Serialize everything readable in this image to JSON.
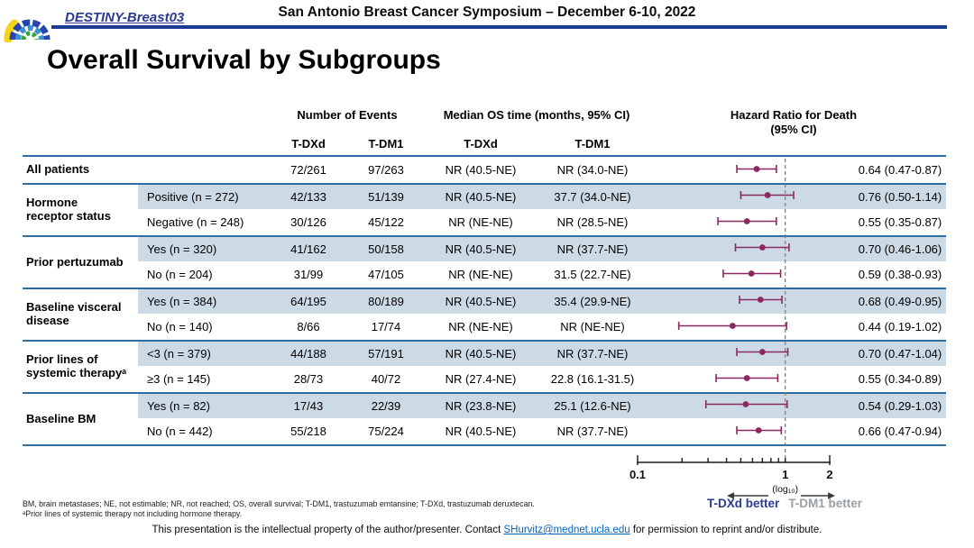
{
  "banner": {
    "study": "DESTINY-Breast03",
    "symposium": "San Antonio Breast Cancer Symposium – December 6-10, 2022"
  },
  "page": {
    "title": "Overall Survival by Subgroups"
  },
  "colors": {
    "navy": "#1c3c94",
    "destiny": "#2b3990",
    "stripe": "#ccdae6",
    "sep": "#2e6da4",
    "marker": "#8c2860",
    "graylabel": "#9aa0a6",
    "link": "#0563c1"
  },
  "table": {
    "col_headers": {
      "events": "Number of Events",
      "median": "Median OS time (months, 95% CI)",
      "hazard_line1": "Hazard Ratio for Death",
      "hazard_line2": "(95% CI)",
      "ev_tdxd": "T-DXd",
      "ev_tdm1": "T-DM1",
      "md_tdxd": "T-DXd",
      "md_tdm1": "T-DM1"
    },
    "groups": [
      {
        "label": "All patients"
      },
      {
        "label": "Hormone receptor status"
      },
      {
        "label": "Prior pertuzumab"
      },
      {
        "label": "Baseline visceral disease"
      },
      {
        "label": "Prior lines of systemic therapyᵃ"
      },
      {
        "label": "Baseline BM"
      }
    ],
    "rows": [
      {
        "sub": "",
        "ev_dxd": "72/261",
        "ev_dm1": "97/263",
        "med_dxd": "NR (40.5-NE)",
        "med_dm1": "NR (34.0-NE)",
        "hr_text": "0.64 (0.47-0.87)"
      },
      {
        "sub": "Positive (n = 272)",
        "ev_dxd": "42/133",
        "ev_dm1": "51/139",
        "med_dxd": "NR (40.5-NE)",
        "med_dm1": "37.7 (34.0-NE)",
        "hr_text": "0.76 (0.50-1.14)"
      },
      {
        "sub": "Negative (n = 248)",
        "ev_dxd": "30/126",
        "ev_dm1": "45/122",
        "med_dxd": "NR (NE-NE)",
        "med_dm1": "NR (28.5-NE)",
        "hr_text": "0.55 (0.35-0.87)"
      },
      {
        "sub": "Yes (n = 320)",
        "ev_dxd": "41/162",
        "ev_dm1": "50/158",
        "med_dxd": "NR (40.5-NE)",
        "med_dm1": "NR (37.7-NE)",
        "hr_text": "0.70 (0.46-1.06)"
      },
      {
        "sub": "No (n = 204)",
        "ev_dxd": "31/99",
        "ev_dm1": "47/105",
        "med_dxd": "NR (NE-NE)",
        "med_dm1": "31.5 (22.7-NE)",
        "hr_text": "0.59 (0.38-0.93)"
      },
      {
        "sub": "Yes (n = 384)",
        "ev_dxd": "64/195",
        "ev_dm1": "80/189",
        "med_dxd": "NR (40.5-NE)",
        "med_dm1": "35.4 (29.9-NE)",
        "hr_text": "0.68 (0.49-0.95)"
      },
      {
        "sub": "No (n = 140)",
        "ev_dxd": "8/66",
        "ev_dm1": "17/74",
        "med_dxd": "NR (NE-NE)",
        "med_dm1": "NR (NE-NE)",
        "hr_text": "0.44 (0.19-1.02)"
      },
      {
        "sub": "<3 (n = 379)",
        "ev_dxd": "44/188",
        "ev_dm1": "57/191",
        "med_dxd": "NR (40.5-NE)",
        "med_dm1": "NR (37.7-NE)",
        "hr_text": "0.70 (0.47-1.04)"
      },
      {
        "sub": "≥3 (n = 145)",
        "ev_dxd": "28/73",
        "ev_dm1": "40/72",
        "med_dxd": "NR (27.4-NE)",
        "med_dm1": "22.8 (16.1-31.5)",
        "hr_text": "0.55 (0.34-0.89)"
      },
      {
        "sub": "Yes (n = 82)",
        "ev_dxd": "17/43",
        "ev_dm1": "22/39",
        "med_dxd": "NR (23.8-NE)",
        "med_dm1": "25.1 (12.6-NE)",
        "hr_text": "0.54 (0.29-1.03)"
      },
      {
        "sub": "No (n = 442)",
        "ev_dxd": "55/218",
        "ev_dm1": "75/224",
        "med_dxd": "NR (40.5-NE)",
        "med_dm1": "NR (37.7-NE)",
        "hr_text": "0.66 (0.47-0.94)"
      }
    ]
  },
  "chart_data": {
    "type": "scatter",
    "title": "Hazard Ratio for Death (95% CI)",
    "x_scale": "log10",
    "x_range": [
      0.1,
      2
    ],
    "reference_line": 1,
    "ticks": [
      0.1,
      0.2,
      0.3,
      0.4,
      0.5,
      0.6,
      0.7,
      0.8,
      0.9,
      1,
      2
    ],
    "tick_labels": [
      {
        "value": 0.1,
        "label": "0.1"
      },
      {
        "value": 1,
        "label": "1"
      },
      {
        "value": 2,
        "label": "2"
      }
    ],
    "scale_note": "(log₁₀)",
    "better_left": "T-DXd better",
    "better_right": "T-DM1 better",
    "points": [
      {
        "subgroup": "All patients",
        "hr": 0.64,
        "lo": 0.47,
        "hi": 0.87
      },
      {
        "subgroup": "Hormone receptor status — Positive (n = 272)",
        "hr": 0.76,
        "lo": 0.5,
        "hi": 1.14
      },
      {
        "subgroup": "Hormone receptor status — Negative (n = 248)",
        "hr": 0.55,
        "lo": 0.35,
        "hi": 0.87
      },
      {
        "subgroup": "Prior pertuzumab — Yes (n = 320)",
        "hr": 0.7,
        "lo": 0.46,
        "hi": 1.06
      },
      {
        "subgroup": "Prior pertuzumab — No (n = 204)",
        "hr": 0.59,
        "lo": 0.38,
        "hi": 0.93
      },
      {
        "subgroup": "Baseline visceral disease — Yes (n = 384)",
        "hr": 0.68,
        "lo": 0.49,
        "hi": 0.95
      },
      {
        "subgroup": "Baseline visceral disease — No (n = 140)",
        "hr": 0.44,
        "lo": 0.19,
        "hi": 1.02
      },
      {
        "subgroup": "Prior lines of systemic therapy — <3 (n = 379)",
        "hr": 0.7,
        "lo": 0.47,
        "hi": 1.04
      },
      {
        "subgroup": "Prior lines of systemic therapy — ≥3 (n = 145)",
        "hr": 0.55,
        "lo": 0.34,
        "hi": 0.89
      },
      {
        "subgroup": "Baseline BM — Yes (n = 82)",
        "hr": 0.54,
        "lo": 0.29,
        "hi": 1.03
      },
      {
        "subgroup": "Baseline BM — No (n = 442)",
        "hr": 0.66,
        "lo": 0.47,
        "hi": 0.94
      }
    ]
  },
  "footnotes": {
    "line1": "BM, brain metastases; NE, not estimable; NR, not reached; OS, overall survival; T-DM1, trastuzumab emtansine; T-DXd, trastuzumab deruxtecan.",
    "line2": "ᵃPrior lines of systemic therapy not including hormone therapy."
  },
  "footer": {
    "note_pre": "This presentation is the intellectual property of the author/presenter. Contact ",
    "link": "SHurvitz@mednet.ucla.edu",
    "note_post": " for permission to reprint and/or distribute."
  }
}
